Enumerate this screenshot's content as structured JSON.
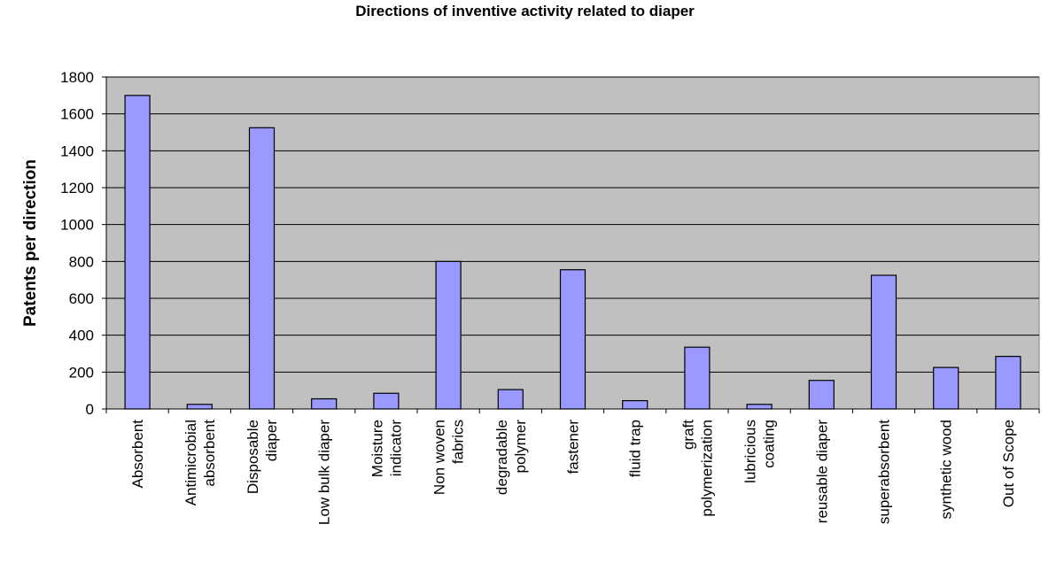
{
  "chart_data": {
    "type": "bar",
    "title": "Directions of inventive activity related to diaper",
    "xlabel": "",
    "ylabel": "Patents per direction",
    "ylim": [
      0,
      1800
    ],
    "yticks": [
      0,
      200,
      400,
      600,
      800,
      1000,
      1200,
      1400,
      1600,
      1800
    ],
    "grid": true,
    "legend": false,
    "colors": {
      "bar": "#9999FF",
      "plot_background": "#C0C0C0",
      "gridline": "#000000"
    },
    "categories": [
      [
        "Absorbent"
      ],
      [
        "Antimicrobial",
        "absorbent"
      ],
      [
        "Disposable",
        "diaper"
      ],
      [
        "Low bulk diaper"
      ],
      [
        "Moisture",
        "indicator"
      ],
      [
        "Non woven",
        "fabrics"
      ],
      [
        "degradable",
        "polymer"
      ],
      [
        "fastener"
      ],
      [
        "fluid trap"
      ],
      [
        "graft",
        "polymerization"
      ],
      [
        "lubricious",
        "coating"
      ],
      [
        "reusable diaper"
      ],
      [
        "superabsorbent"
      ],
      [
        "synthetic wood"
      ],
      [
        "Out of Scope"
      ]
    ],
    "values": [
      1700,
      25,
      1525,
      55,
      85,
      800,
      105,
      755,
      45,
      335,
      25,
      155,
      725,
      225,
      285
    ]
  }
}
